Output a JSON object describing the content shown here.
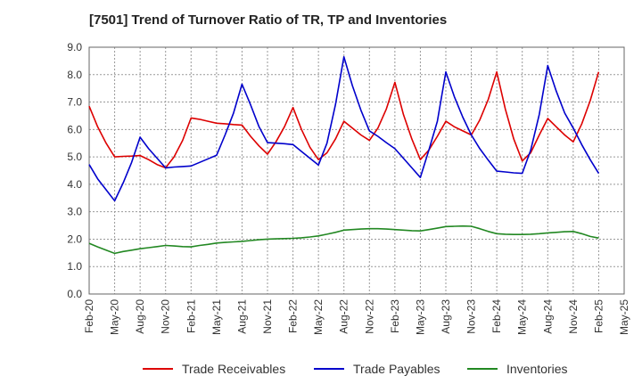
{
  "chart_data": {
    "type": "line",
    "title": "[7501]  Trend of Turnover Ratio of TR, TP and Inventories",
    "xlabel": "",
    "ylabel": "",
    "ylim": [
      0,
      9
    ],
    "yticks": [
      "0.0",
      "1.0",
      "2.0",
      "3.0",
      "4.0",
      "5.0",
      "6.0",
      "7.0",
      "8.0",
      "9.0"
    ],
    "x_tick_labels": [
      "Feb-20",
      "May-20",
      "Aug-20",
      "Nov-20",
      "Feb-21",
      "May-21",
      "Aug-21",
      "Nov-21",
      "Feb-22",
      "May-22",
      "Aug-22",
      "Nov-22",
      "Feb-23",
      "May-23",
      "Aug-23",
      "Nov-23",
      "Feb-24",
      "May-24",
      "Aug-24",
      "Nov-24",
      "Feb-25",
      "May-25"
    ],
    "x": [
      "Feb-20",
      "Mar-20",
      "Apr-20",
      "May-20",
      "Jun-20",
      "Jul-20",
      "Aug-20",
      "Sep-20",
      "Oct-20",
      "Nov-20",
      "Dec-20",
      "Jan-21",
      "Feb-21",
      "Mar-21",
      "Apr-21",
      "May-21",
      "Jun-21",
      "Jul-21",
      "Aug-21",
      "Sep-21",
      "Oct-21",
      "Nov-21",
      "Dec-21",
      "Jan-22",
      "Feb-22",
      "Mar-22",
      "Apr-22",
      "May-22",
      "Jun-22",
      "Jul-22",
      "Aug-22",
      "Sep-22",
      "Oct-22",
      "Nov-22",
      "Dec-22",
      "Jan-23",
      "Feb-23",
      "Mar-23",
      "Apr-23",
      "May-23",
      "Jun-23",
      "Jul-23",
      "Aug-23",
      "Sep-23",
      "Oct-23",
      "Nov-23",
      "Dec-23",
      "Jan-24",
      "Feb-24",
      "Mar-24",
      "Apr-24",
      "May-24",
      "Jun-24",
      "Jul-24",
      "Aug-24",
      "Sep-24",
      "Oct-24",
      "Nov-24",
      "Dec-24",
      "Jan-25",
      "Feb-25"
    ],
    "grid": true,
    "legend_position": "bottom",
    "series": [
      {
        "name": "Trade Receivables",
        "color": "#dd0000",
        "values": [
          6.85,
          6.1,
          5.5,
          5.0,
          5.02,
          5.03,
          5.05,
          4.9,
          4.72,
          4.6,
          5.0,
          5.6,
          6.42,
          6.37,
          6.3,
          6.23,
          6.21,
          6.18,
          6.16,
          5.75,
          5.4,
          5.1,
          5.55,
          6.1,
          6.8,
          6.0,
          5.35,
          4.9,
          5.15,
          5.65,
          6.3,
          6.05,
          5.8,
          5.6,
          6.05,
          6.75,
          7.72,
          6.55,
          5.65,
          4.9,
          5.25,
          5.75,
          6.3,
          6.1,
          5.95,
          5.8,
          6.35,
          7.1,
          8.1,
          6.75,
          5.65,
          4.85,
          5.15,
          5.8,
          6.4,
          6.1,
          5.8,
          5.55,
          6.2,
          7.05,
          8.1
        ]
      },
      {
        "name": "Trade Payables",
        "color": "#0000cc",
        "values": [
          4.72,
          4.2,
          3.8,
          3.4,
          4.05,
          4.8,
          5.72,
          5.3,
          4.95,
          4.6,
          4.63,
          4.65,
          4.67,
          4.8,
          4.93,
          5.06,
          5.8,
          6.6,
          7.65,
          6.9,
          6.1,
          5.52,
          5.5,
          5.48,
          5.45,
          5.2,
          4.95,
          4.7,
          5.5,
          6.9,
          8.65,
          7.6,
          6.7,
          5.95,
          5.75,
          5.52,
          5.3,
          4.95,
          4.6,
          4.25,
          5.25,
          6.3,
          8.1,
          7.2,
          6.45,
          5.8,
          5.3,
          4.88,
          4.48,
          4.45,
          4.42,
          4.4,
          5.25,
          6.55,
          8.33,
          7.4,
          6.6,
          6.05,
          5.45,
          4.9,
          4.4
        ]
      },
      {
        "name": "Inventories",
        "color": "#228822",
        "values": [
          1.85,
          1.72,
          1.6,
          1.48,
          1.55,
          1.6,
          1.65,
          1.69,
          1.73,
          1.77,
          1.75,
          1.73,
          1.72,
          1.77,
          1.81,
          1.86,
          1.88,
          1.9,
          1.92,
          1.95,
          1.98,
          2.0,
          2.01,
          2.02,
          2.03,
          2.05,
          2.08,
          2.12,
          2.18,
          2.25,
          2.33,
          2.35,
          2.37,
          2.38,
          2.38,
          2.37,
          2.35,
          2.33,
          2.31,
          2.3,
          2.35,
          2.4,
          2.46,
          2.47,
          2.48,
          2.47,
          2.38,
          2.28,
          2.2,
          2.18,
          2.17,
          2.17,
          2.18,
          2.2,
          2.23,
          2.25,
          2.27,
          2.28,
          2.2,
          2.1,
          2.04
        ]
      }
    ]
  }
}
